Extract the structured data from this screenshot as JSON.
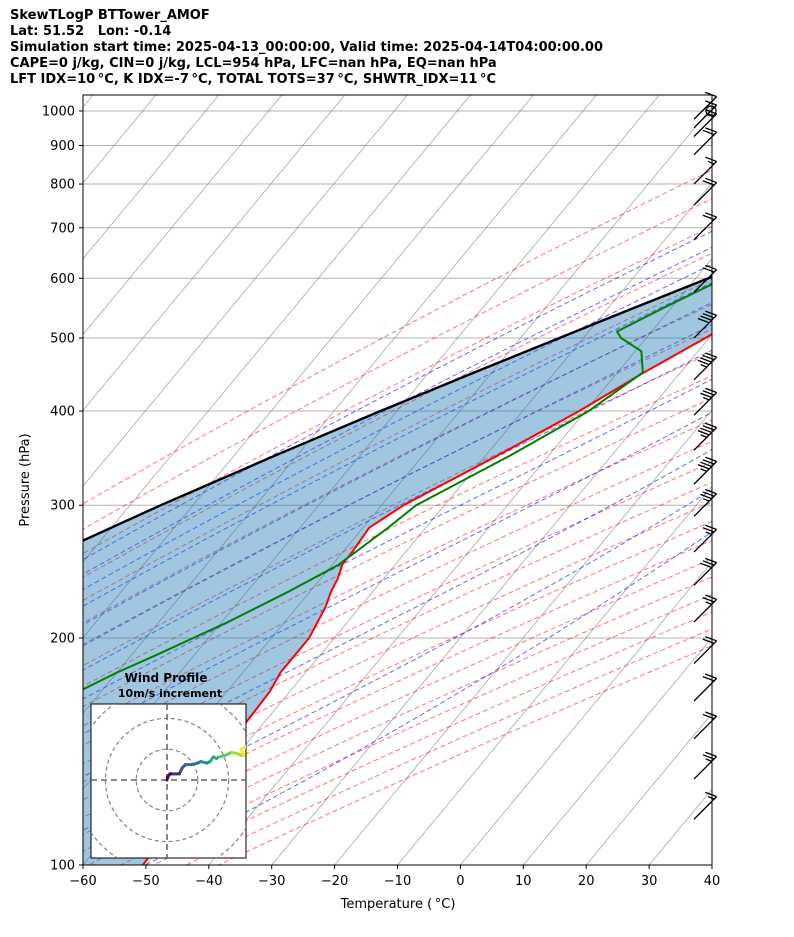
{
  "header": {
    "lines": [
      "SkewTLogP BTTower_AMOF",
      "Lat: 51.52   Lon: -0.14",
      "Simulation start time: 2025-04-13_00:00:00, Valid time: 2025-04-14T04:00:00.00",
      "CAPE=0 j/kg, CIN=0 j/kg, LCL=954 hPa, LFC=nan hPa, EQ=nan hPa",
      "LFT IDX=10 °C, K IDX=-7 °C, TOTAL TOTS=37 °C, SHWTR_IDX=11 °C"
    ]
  },
  "colors": {
    "temperature": "#ff0000",
    "dewpoint": "#008000",
    "parcel": "#000000",
    "cape_fill": "#1f77b4",
    "dry_adiabats": "#ff0000",
    "moist_adiabats": "#0000ff",
    "mixing_ratio": "#800080",
    "isotherms": "#808080"
  },
  "chart_data": [
    {
      "type": "line",
      "name": "skew-t-log-p",
      "xlabel": "Temperature ( °C)",
      "ylabel": "Pressure (hPa)",
      "xlim": [
        -60,
        40
      ],
      "ylim": [
        1050,
        100
      ],
      "y_scale": "log",
      "x_ticks": [
        -60,
        -50,
        -40,
        -30,
        -20,
        -10,
        0,
        10,
        20,
        30,
        40
      ],
      "x_tick_labels": [
        "−60",
        "−50",
        "−40",
        "−30",
        "−20",
        "−10",
        "0",
        "10",
        "20",
        "30",
        "40"
      ],
      "y_ticks": [
        1000,
        900,
        800,
        700,
        600,
        500,
        400,
        300,
        200,
        100
      ],
      "y_tick_labels": [
        "1000",
        "900",
        "800",
        "700",
        "600",
        "500",
        "400",
        "300",
        "200",
        "100"
      ],
      "grid": true,
      "series": [
        {
          "key": "temperature",
          "pressure": [
            992,
            975,
            950,
            925,
            900,
            850,
            800,
            750,
            700,
            650,
            600,
            550,
            500,
            450,
            400,
            350,
            300,
            280,
            260,
            250,
            240,
            230,
            220,
            200,
            180,
            170,
            160,
            150,
            140,
            130,
            120,
            110,
            100
          ],
          "values": [
            5.2,
            5.6,
            5.0,
            4.0,
            2.2,
            -0.4,
            -4.0,
            -8.0,
            -13.0,
            -17.2,
            -21.6,
            -26.2,
            -30.6,
            -35.8,
            -41.0,
            -48.0,
            -56.5,
            -59.0,
            -58.5,
            -58.4,
            -57.3,
            -56.6,
            -55.5,
            -54.0,
            -54.0,
            -53.2,
            -53.0,
            -52.8,
            -52.4,
            -51.8,
            -51.2,
            -50.8,
            -50.5
          ]
        },
        {
          "key": "dewpoint",
          "pressure": [
            1000,
            990,
            975,
            950,
            925,
            900,
            875,
            850,
            800,
            750,
            700,
            650,
            600,
            550,
            510,
            500,
            480,
            450,
            400,
            350,
            300,
            280,
            250,
            230,
            210,
            190,
            180,
            170,
            160,
            150,
            140,
            130,
            120,
            110,
            100
          ],
          "values": [
            2.0,
            2.5,
            1.0,
            -7.0,
            -12.5,
            -15.5,
            -17.0,
            -18.0,
            -19.5,
            -25.0,
            -31.0,
            -38.5,
            -35.5,
            -41.0,
            -45.5,
            -44.0,
            -39.0,
            -36.0,
            -39.5,
            -46.0,
            -54.5,
            -56.0,
            -59.0,
            -63.5,
            -69.0,
            -76.0,
            -80.0,
            -83.5,
            -85.0,
            -84.0,
            -82.0,
            -80.0,
            -78.0,
            -76.5,
            -75.0
          ]
        },
        {
          "key": "parcel",
          "pressure": [
            992,
            975,
            954,
            925,
            900,
            850,
            800,
            750,
            700,
            650,
            600,
            550,
            500,
            450,
            400,
            350,
            300,
            250,
            200,
            150,
            120,
            100
          ],
          "values": [
            5.2,
            3.8,
            2.0,
            -0.5,
            -2.9,
            -7.7,
            -12.9,
            -18.5,
            -24.5,
            -31.0,
            -38.0,
            -45.6,
            -53.8,
            -62.8,
            -72.6,
            -83.3,
            -95.1,
            -108.1,
            -122.7,
            -139.8,
            -152.2,
            -161.6
          ]
        }
      ],
      "fill": {
        "between": [
          "parcel",
          "temperature"
        ]
      },
      "wind_barbs": [
        {
          "pressure": 1000,
          "speed_kt": 0
        },
        {
          "pressure": 975,
          "speed_kt": 10
        },
        {
          "pressure": 950,
          "speed_kt": 10
        },
        {
          "pressure": 925,
          "speed_kt": 15
        },
        {
          "pressure": 875,
          "speed_kt": 20
        },
        {
          "pressure": 800,
          "speed_kt": 15
        },
        {
          "pressure": 750,
          "speed_kt": 20
        },
        {
          "pressure": 675,
          "speed_kt": 20
        },
        {
          "pressure": 575,
          "speed_kt": 20
        },
        {
          "pressure": 500,
          "speed_kt": 40
        },
        {
          "pressure": 440,
          "speed_kt": 45
        },
        {
          "pressure": 395,
          "speed_kt": 35
        },
        {
          "pressure": 355,
          "speed_kt": 45
        },
        {
          "pressure": 320,
          "speed_kt": 45
        },
        {
          "pressure": 290,
          "speed_kt": 35
        },
        {
          "pressure": 260,
          "speed_kt": 25
        },
        {
          "pressure": 235,
          "speed_kt": 30
        },
        {
          "pressure": 210,
          "speed_kt": 25
        },
        {
          "pressure": 185,
          "speed_kt": 20
        },
        {
          "pressure": 165,
          "speed_kt": 20
        },
        {
          "pressure": 147,
          "speed_kt": 20
        },
        {
          "pressure": 130,
          "speed_kt": 25
        },
        {
          "pressure": 115,
          "speed_kt": 15
        }
      ]
    },
    {
      "type": "scatter",
      "name": "hodograph",
      "title": "Wind Profile",
      "subtitle": "10m/s increment",
      "rings_ms": [
        10,
        20,
        30
      ],
      "range_ms": 25,
      "u": [
        0,
        0.2,
        1,
        2,
        3,
        4,
        4.5,
        5,
        6,
        8,
        10,
        11,
        13,
        14,
        15,
        16,
        17,
        19,
        21,
        23,
        24,
        25,
        24,
        26
      ],
      "v": [
        0,
        1,
        2,
        2,
        2,
        2,
        3,
        4,
        5,
        5,
        5.5,
        6,
        5.5,
        6,
        7.5,
        7,
        7.5,
        8,
        9,
        8.5,
        8,
        8,
        10,
        11
      ]
    }
  ]
}
